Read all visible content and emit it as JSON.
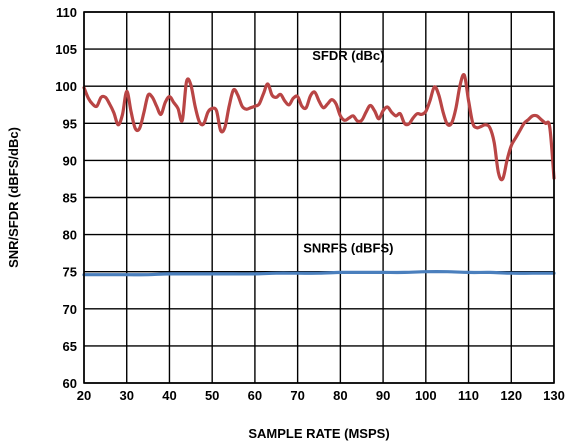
{
  "chart_data": {
    "type": "line",
    "xlabel": "SAMPLE RATE (MSPS)",
    "ylabel": "SNR/SFDR (dBFS/dBc)",
    "xlim": [
      20,
      130
    ],
    "ylim": [
      60,
      110
    ],
    "x_ticks": [
      20,
      30,
      40,
      50,
      60,
      70,
      80,
      90,
      100,
      110,
      120,
      130
    ],
    "y_ticks": [
      60,
      65,
      70,
      75,
      80,
      85,
      90,
      95,
      100,
      105,
      110
    ],
    "grid": true,
    "series": [
      {
        "name": "SFDR (dBc)",
        "color": "#b94545",
        "x": [
          20,
          21,
          22,
          23,
          24,
          25,
          26,
          27,
          28,
          29,
          30,
          31,
          32,
          33,
          34,
          35,
          36,
          37,
          38,
          39,
          40,
          41,
          42,
          43,
          44,
          45,
          46,
          47,
          48,
          49,
          50,
          51,
          52,
          53,
          54,
          55,
          56,
          57,
          58,
          59,
          60,
          61,
          62,
          63,
          64,
          65,
          66,
          67,
          68,
          69,
          70,
          71,
          72,
          73,
          74,
          75,
          76,
          77,
          78,
          79,
          80,
          81,
          82,
          83,
          84,
          85,
          86,
          87,
          88,
          89,
          90,
          91,
          92,
          93,
          94,
          95,
          96,
          97,
          98,
          99,
          100,
          101,
          102,
          103,
          104,
          105,
          106,
          107,
          108,
          109,
          110,
          111,
          112,
          113,
          114,
          115,
          116,
          117,
          118,
          119,
          120,
          121,
          122,
          123,
          124,
          125,
          126,
          127,
          128,
          129,
          130
        ],
        "y": [
          99.8,
          98.4,
          97.6,
          97.3,
          98.5,
          98.5,
          97.6,
          96.4,
          94.8,
          96.2,
          99.3,
          96.6,
          94.3,
          94.3,
          96.4,
          98.8,
          98.5,
          97.3,
          96.2,
          97.8,
          98.6,
          97.8,
          97.0,
          95.4,
          100.6,
          100.2,
          97.3,
          95.2,
          94.9,
          96.5,
          97.0,
          96.7,
          94.0,
          94.5,
          97.4,
          99.5,
          98.8,
          97.3,
          96.9,
          97.1,
          97.3,
          97.6,
          99.0,
          100.3,
          98.8,
          98.5,
          98.9,
          98.0,
          97.5,
          98.4,
          98.6,
          97.3,
          97.1,
          98.7,
          99.2,
          98.0,
          97.1,
          97.6,
          98.2,
          97.6,
          96.0,
          95.4,
          95.7,
          96.0,
          95.3,
          95.4,
          96.5,
          97.4,
          96.7,
          95.6,
          96.7,
          97.2,
          96.5,
          96.0,
          96.3,
          95.0,
          94.9,
          95.7,
          96.3,
          96.2,
          96.6,
          98.1,
          99.9,
          98.9,
          96.6,
          94.9,
          95.0,
          96.9,
          100.1,
          101.5,
          98.1,
          95.0,
          94.4,
          94.6,
          94.8,
          94.4,
          92.4,
          88.3,
          87.5,
          90.0,
          92.0,
          93.0,
          94.0,
          95.0,
          95.5,
          96.0,
          96.0,
          95.5,
          95.0,
          94.5,
          87.6
        ]
      },
      {
        "name": "SNRFS (dBFS)",
        "color": "#4a7fbd",
        "x": [
          20,
          25,
          30,
          35,
          40,
          45,
          50,
          55,
          60,
          65,
          70,
          75,
          80,
          85,
          90,
          95,
          100,
          105,
          110,
          115,
          120,
          125,
          130
        ],
        "y": [
          74.6,
          74.6,
          74.6,
          74.6,
          74.7,
          74.7,
          74.7,
          74.7,
          74.7,
          74.8,
          74.8,
          74.8,
          74.9,
          74.9,
          74.9,
          74.9,
          75.0,
          75.0,
          74.9,
          74.9,
          74.8,
          74.8,
          74.8
        ]
      }
    ],
    "annotations": [
      {
        "text": "SFDR (dBc)",
        "x": 80,
        "y": 103.5
      },
      {
        "text": "SNRFS (dBFS)",
        "x": 80,
        "y": 77.6
      }
    ]
  }
}
